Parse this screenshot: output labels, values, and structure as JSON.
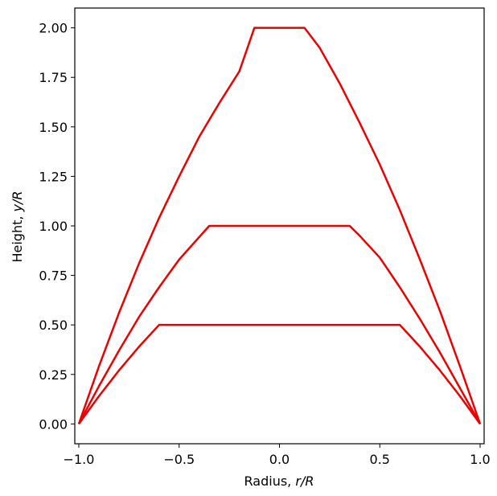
{
  "chart_data": {
    "type": "line",
    "title": "",
    "xlabel_main": "Radius, ",
    "xlabel_var": "r/R",
    "ylabel_main": "Height, ",
    "ylabel_var": "y/R",
    "xlim": [
      -1.02,
      1.02
    ],
    "ylim": [
      -0.1,
      2.1
    ],
    "xticks": [
      -1.0,
      -0.5,
      0.0,
      0.5,
      1.0
    ],
    "xtick_labels": [
      "−1.0",
      "−0.5",
      "0.0",
      "0.5",
      "1.0"
    ],
    "yticks": [
      0.0,
      0.25,
      0.5,
      0.75,
      1.0,
      1.25,
      1.5,
      1.75,
      2.0
    ],
    "ytick_labels": [
      "0.00",
      "0.25",
      "0.50",
      "0.75",
      "1.00",
      "1.25",
      "1.50",
      "1.75",
      "2.00"
    ],
    "grid": false,
    "line_color": "#ee0000",
    "series": [
      {
        "x": [
          -1.0,
          -0.9,
          -0.8,
          -0.7,
          -0.6,
          -0.5,
          -0.4,
          -0.3,
          -0.2,
          -0.125,
          0.125,
          0.2,
          0.3,
          0.4,
          0.5,
          0.6,
          0.7,
          0.8,
          0.9,
          1.0
        ],
        "y": [
          0.0,
          0.29,
          0.56,
          0.81,
          1.04,
          1.25,
          1.45,
          1.62,
          1.78,
          2.0,
          2.0,
          1.9,
          1.72,
          1.52,
          1.31,
          1.08,
          0.83,
          0.57,
          0.29,
          0.0
        ]
      },
      {
        "x": [
          -1.0,
          -0.9,
          -0.8,
          -0.7,
          -0.6,
          -0.5,
          -0.35,
          0.35,
          0.4,
          0.5,
          0.6,
          0.7,
          0.8,
          0.9,
          1.0
        ],
        "y": [
          0.0,
          0.19,
          0.37,
          0.54,
          0.69,
          0.83,
          1.0,
          1.0,
          0.95,
          0.84,
          0.69,
          0.53,
          0.36,
          0.18,
          0.0
        ]
      },
      {
        "x": [
          -1.0,
          -0.9,
          -0.8,
          -0.7,
          -0.6,
          0.6,
          0.7,
          0.8,
          0.9,
          1.0
        ],
        "y": [
          0.0,
          0.14,
          0.27,
          0.39,
          0.5,
          0.5,
          0.39,
          0.27,
          0.14,
          0.0
        ]
      }
    ]
  }
}
